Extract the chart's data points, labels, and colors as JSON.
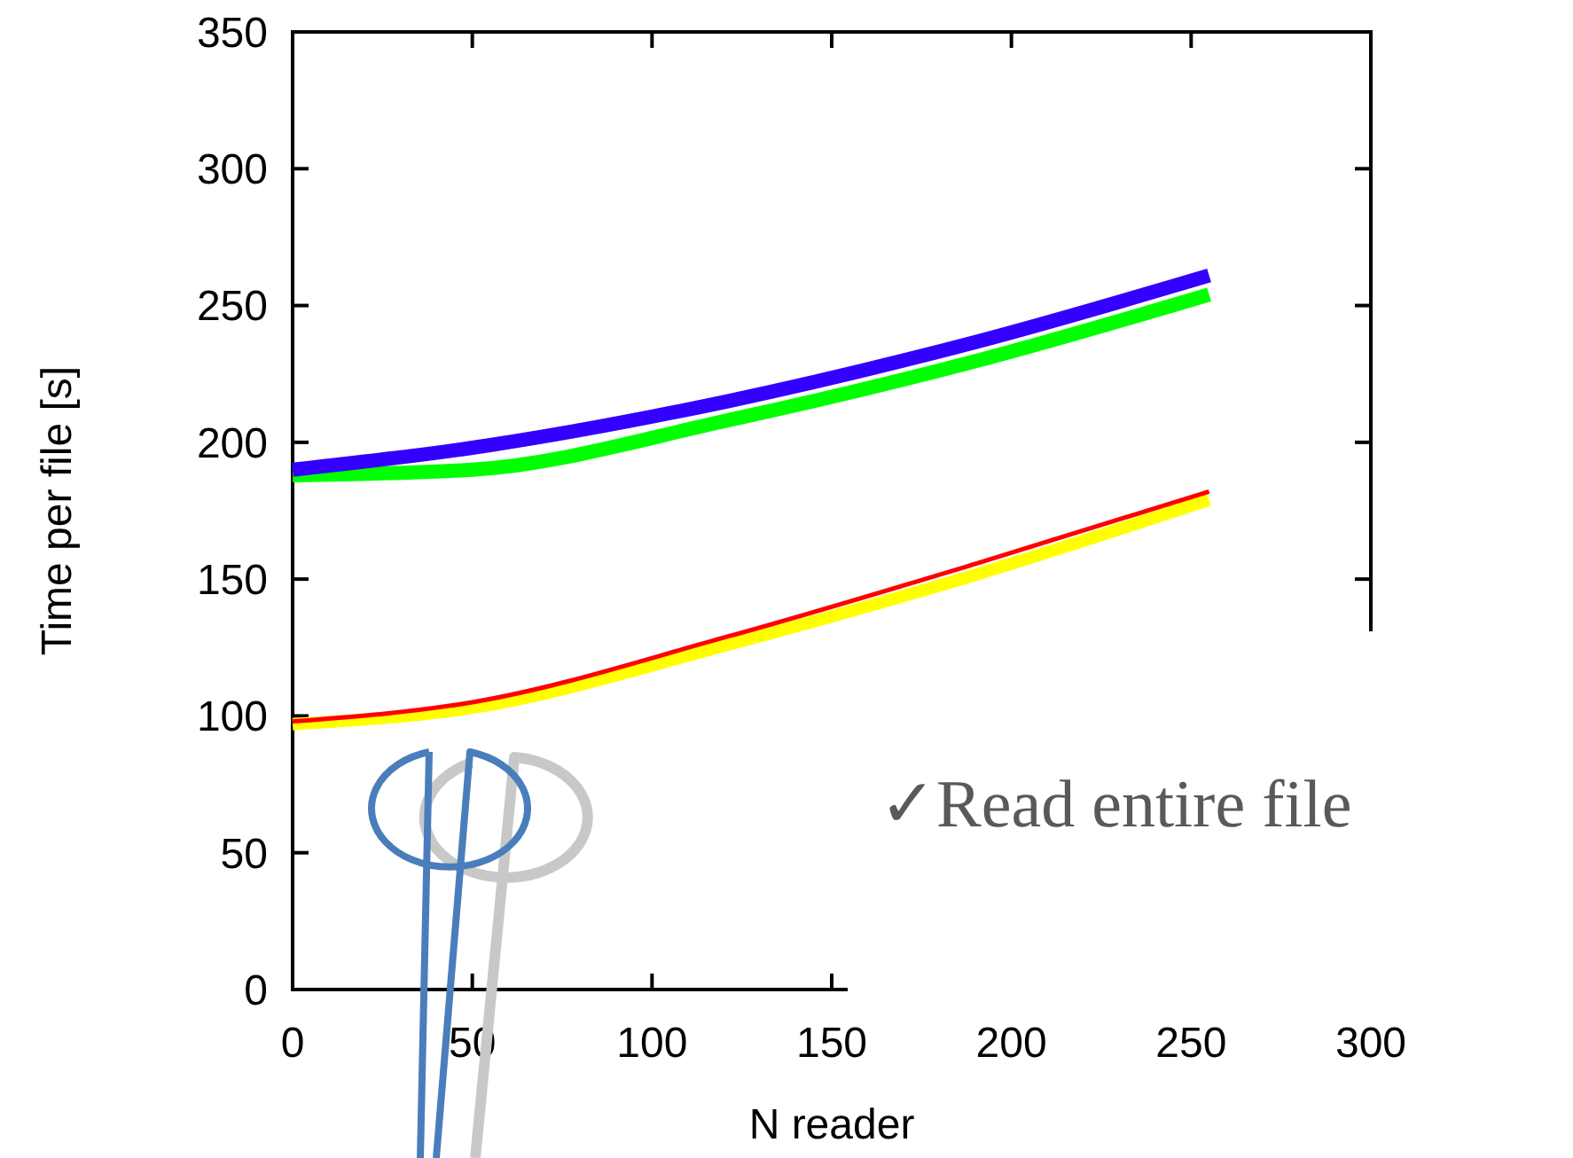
{
  "chart_data": {
    "type": "line",
    "xlabel": "N reader",
    "ylabel": "Time per file [s]",
    "xlim": [
      0,
      300
    ],
    "ylim": [
      0,
      350
    ],
    "xticks": [
      0,
      50,
      100,
      150,
      200,
      250,
      300
    ],
    "yticks": [
      0,
      50,
      100,
      150,
      200,
      250,
      300,
      350
    ],
    "grid": false,
    "series": [
      {
        "color": "#00ff00",
        "x": [
          0,
          50,
          121,
          191,
          255
        ],
        "values": [
          188,
          190,
          208,
          230,
          254
        ]
      },
      {
        "color": "#3300ff",
        "x": [
          0,
          50,
          121,
          191,
          255
        ],
        "values": [
          190,
          198,
          215,
          237,
          261
        ]
      },
      {
        "color": "#ffff00",
        "x": [
          0,
          50,
          121,
          191,
          255
        ],
        "values": [
          97,
          103,
          126,
          152,
          179
        ]
      },
      {
        "color": "#ff0000",
        "x": [
          0,
          50,
          121,
          191,
          255
        ],
        "values": [
          98,
          105,
          129,
          156,
          182
        ]
      }
    ],
    "annotations": [
      "✓Read entire file"
    ]
  }
}
